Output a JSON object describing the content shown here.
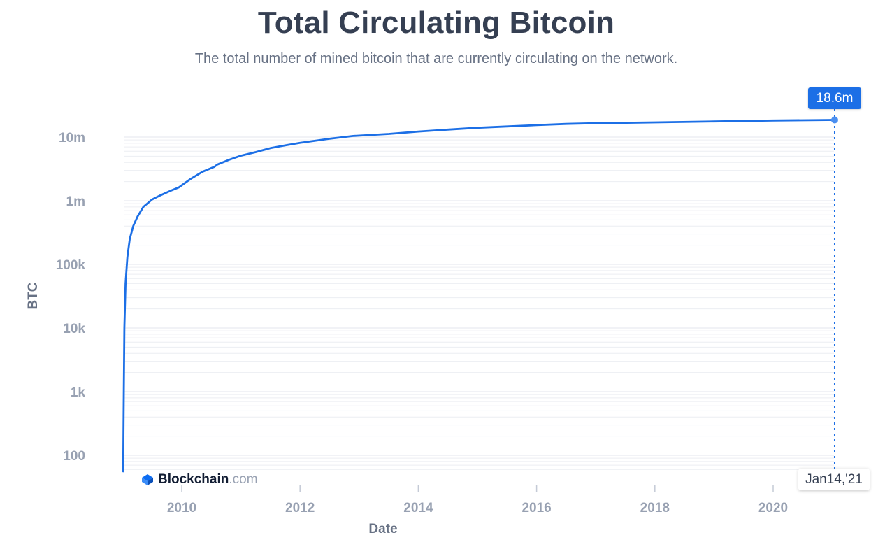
{
  "title": "Total Circulating Bitcoin",
  "subtitle": "The total number of mined bitcoin that are currently circulating on the network.",
  "tooltip": {
    "value_label": "18.6m",
    "date_label": "Jan14,'21"
  },
  "brand": {
    "name": "Blockchain",
    "tld": ".com",
    "logo_icon": "blockchain-logo-icon"
  },
  "colors": {
    "line": "#1c6fe6",
    "title": "#353f52",
    "subtitle": "#677184",
    "tick": "#98a1b2",
    "grid": "#eceef2"
  },
  "chart_data": {
    "type": "line",
    "title": "Total Circulating Bitcoin",
    "subtitle": "The total number of mined bitcoin that are currently circulating on the network.",
    "xlabel": "Date",
    "ylabel": "BTC",
    "y_scale": "log",
    "grid": "horizontal",
    "x_range": [
      2009.0,
      2021.04
    ],
    "y_range": [
      50,
      20000000
    ],
    "y_ticks": [
      {
        "value": 100,
        "label": "100"
      },
      {
        "value": 1000,
        "label": "1k"
      },
      {
        "value": 10000,
        "label": "10k"
      },
      {
        "value": 100000,
        "label": "100k"
      },
      {
        "value": 1000000,
        "label": "1m"
      },
      {
        "value": 10000000,
        "label": "10m"
      }
    ],
    "x_ticks": [
      {
        "value": 2010,
        "label": "2010"
      },
      {
        "value": 2012,
        "label": "2012"
      },
      {
        "value": 2014,
        "label": "2014"
      },
      {
        "value": 2016,
        "label": "2016"
      },
      {
        "value": 2018,
        "label": "2018"
      },
      {
        "value": 2020,
        "label": "2020"
      }
    ],
    "series": [
      {
        "x": [
          2009.01,
          2009.02,
          2009.03,
          2009.05,
          2009.08,
          2009.12,
          2009.18,
          2009.25,
          2009.35,
          2009.5,
          2009.65,
          2009.8,
          2009.95,
          2010.15,
          2010.35,
          2010.55,
          2010.6,
          2010.8,
          2011.0,
          2011.25,
          2011.5,
          2011.75,
          2012.0,
          2012.5,
          2012.9,
          2013.5,
          2014.0,
          2014.5,
          2015.0,
          2015.5,
          2016.0,
          2016.5,
          2017.0,
          2018.0,
          2019.0,
          2020.0,
          2021.04
        ],
        "y": [
          50,
          1000,
          10000,
          50000,
          130000,
          250000,
          400000,
          560000,
          800000,
          1050000,
          1230000,
          1420000,
          1620000,
          2200000,
          2850000,
          3400000,
          3700000,
          4400000,
          5100000,
          5800000,
          6700000,
          7400000,
          8100000,
          9400000,
          10400000,
          11200000,
          12200000,
          13100000,
          14000000,
          14700000,
          15400000,
          16100000,
          16500000,
          17000000,
          17600000,
          18200000,
          18600000
        ]
      }
    ]
  }
}
